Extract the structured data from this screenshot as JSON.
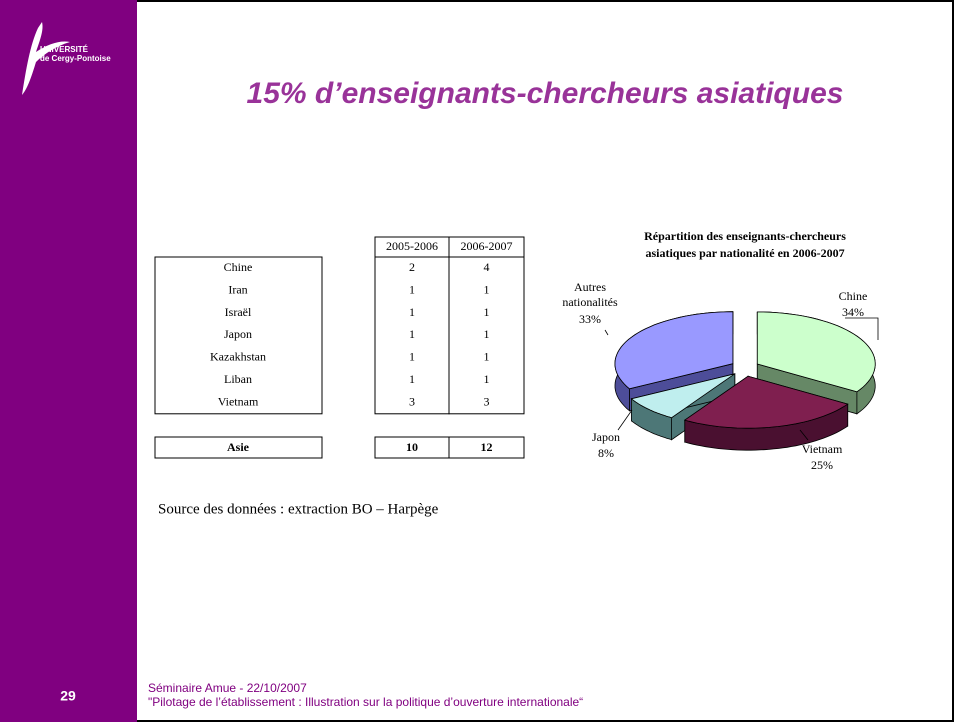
{
  "logo": {
    "line1": "UNIVERSITÉ",
    "line2": "de Cergy-Pontoise"
  },
  "title": "15% d’enseignants-chercheurs asiatiques",
  "table": {
    "columns": [
      "2005-2006",
      "2006-2007"
    ],
    "rows": [
      [
        "Chine",
        2,
        4
      ],
      [
        "Iran",
        1,
        1
      ],
      [
        "Israël",
        1,
        1
      ],
      [
        "Japon",
        1,
        1
      ],
      [
        "Kazakhstan",
        1,
        1
      ],
      [
        "Liban",
        1,
        1
      ],
      [
        "Vietnam",
        3,
        3
      ]
    ],
    "total": [
      "Asie",
      10,
      12
    ]
  },
  "source": "Source des données : extraction BO – Harpège",
  "chart_data": {
    "type": "pie",
    "title": "Répartition des enseignants-chercheurs asiatiques par nationalité en 2006-2007",
    "categories": [
      "Chine",
      "Vietnam",
      "Japon",
      "Autres nationalités"
    ],
    "values": [
      34,
      25,
      8,
      33
    ],
    "value_labels": [
      "34%",
      "25%",
      "8%",
      "33%"
    ],
    "colors": [
      "#ccffcc",
      "#7f1f4f",
      "#bfeeee",
      "#9999ff"
    ],
    "side_colors": [
      "#668866",
      "#4a1030",
      "#4d7777",
      "#4d4d99"
    ]
  },
  "footer": {
    "page": "29",
    "line1": "Séminaire Amue - 22/10/2007",
    "line2": "\"Pilotage de l’établissement : Illustration sur la politique d’ouverture internationale“"
  }
}
